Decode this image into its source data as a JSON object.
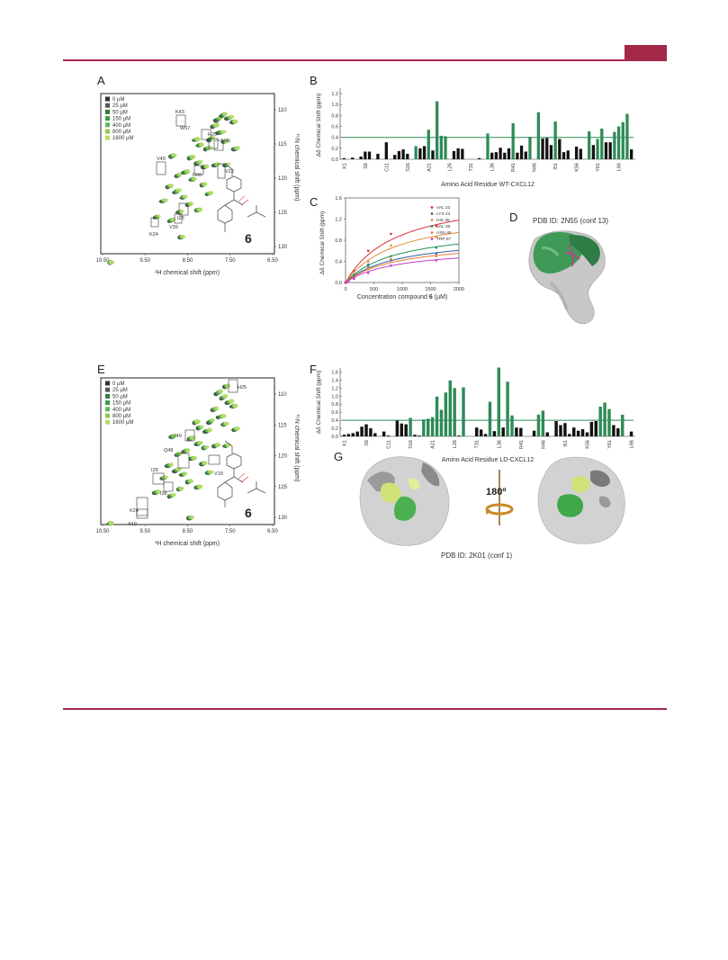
{
  "page": {
    "corner_tab_color": "#a3284a",
    "rule_color": "#a3284a"
  },
  "colors": {
    "green_dark": "#2e8b57",
    "bar_green": "#2e8b57",
    "bar_black": "#111111",
    "threshold": "#2e8b57",
    "peak_black": "#333333",
    "conc": [
      "#333333",
      "#555555",
      "#2e7d3e",
      "#3a9a48",
      "#5cb85c",
      "#8fcc52",
      "#b8dc6a"
    ]
  },
  "panels": {
    "A": {
      "letter": "A",
      "legend": [
        "0 µM",
        "25 µM",
        "50 µM",
        "150 µM",
        "400 µM",
        "800 µM",
        "1600 µM"
      ],
      "xlabel": "¹H chemical shift (ppm)",
      "ylabel": "¹⁵N chemical shift (ppm)",
      "xticks": [
        "10.50",
        "9.50",
        "8.50",
        "7.50",
        "6.50"
      ],
      "yticks": [
        "110",
        "115",
        "120",
        "125",
        "130"
      ],
      "labels": [
        "K43",
        "W57",
        "H25",
        "N45",
        "V49",
        "D60",
        "V23",
        "I28",
        "V39",
        "K24"
      ],
      "compound_label": "6"
    },
    "B": {
      "letter": "B",
      "ylabel": "Δδ Chemical Shift (ppm)",
      "xlabel": "Amino Acid Residue WT-CXCL12",
      "yticks": [
        "0.0",
        "0.2",
        "0.4",
        "0.6",
        "0.8",
        "1.0",
        "1.2"
      ],
      "xticks": [
        "K1",
        "S6",
        "C11",
        "S16",
        "A21",
        "L26",
        "T31",
        "L36",
        "R41",
        "N46",
        "I51",
        "K56",
        "Y61",
        "L66"
      ]
    },
    "C": {
      "letter": "C",
      "ylabel": "Δδ Chemical Shift (ppm)",
      "xlabel_pre": "Concentration compound ",
      "xlabel_bold": "6",
      "xlabel_post": " (µM)",
      "xticks": [
        "0",
        "500",
        "1000",
        "1500",
        "2000"
      ],
      "yticks": [
        "0.0",
        "0.4",
        "0.8",
        "1.2",
        "1.6"
      ],
      "legend": [
        "VAL 23",
        "LYS 24",
        "HIS 25",
        "VAL 39",
        "ASN 45",
        "TRP 57"
      ]
    },
    "D": {
      "letter": "D",
      "title": "PDB ID: 2N55 (conf 13)"
    },
    "E": {
      "letter": "E",
      "legend": [
        "0 µM",
        "25 µM",
        "50 µM",
        "150 µM",
        "400 µM",
        "800 µM",
        "1600 µM"
      ],
      "xlabel": "¹H chemical shift (ppm)",
      "ylabel": "¹⁵N chemical shift (ppm)",
      "xticks": [
        "10.50",
        "9.50",
        "8.50",
        "7.50",
        "6.50"
      ],
      "yticks": [
        "110",
        "115",
        "120",
        "125",
        "130"
      ],
      "labels": [
        "H25",
        "V49",
        "Q48",
        "V18",
        "I28",
        "I38",
        "K24",
        "A40"
      ],
      "compound_label": "6"
    },
    "F": {
      "letter": "F",
      "ylabel": "Δδ Chemical Shift (ppm)",
      "xlabel": "Amino Acid Residue LD-CXCL12",
      "yticks": [
        "0.0",
        "0.2",
        "0.4",
        "0.6",
        "0.8",
        "1.0",
        "1.2",
        "1.4",
        "1.6"
      ],
      "xticks": [
        "K1",
        "S6",
        "C11",
        "S16",
        "A21",
        "L26",
        "T31",
        "L36",
        "R41",
        "N46",
        "I51",
        "K56",
        "Y61",
        "L66"
      ]
    },
    "G": {
      "letter": "G",
      "rotation": "180º",
      "title": "PDB ID: 2K01 (conf 1)"
    }
  },
  "chart_data": [
    {
      "panel": "B",
      "type": "bar",
      "xlabel": "Amino Acid Residue WT-CXCL12",
      "ylabel": "Δδ Chemical Shift (ppm)",
      "ylim": [
        0,
        1.3
      ],
      "threshold": 0.4,
      "values": [
        0.02,
        0,
        0.03,
        0,
        0.05,
        0.14,
        0.14,
        0,
        0.1,
        0,
        0.31,
        0,
        0.08,
        0.15,
        0.18,
        0.1,
        0,
        0.24,
        0.2,
        0.24,
        0.54,
        0.16,
        1.06,
        0.43,
        0.42,
        0,
        0.15,
        0.2,
        0.19,
        0,
        0,
        0,
        0.02,
        0,
        0.47,
        0.12,
        0.13,
        0.21,
        0.12,
        0.2,
        0.66,
        0.12,
        0.25,
        0.14,
        0.41,
        0,
        0.86,
        0.38,
        0.39,
        0.26,
        0.69,
        0.37,
        0.13,
        0.16,
        0,
        0.23,
        0.19,
        0,
        0.51,
        0.26,
        0.37,
        0.56,
        0.31,
        0.31,
        0.5,
        0.6,
        0.68,
        0.83,
        0.18
      ],
      "green": [
        0,
        0,
        0,
        0,
        0,
        0,
        0,
        0,
        0,
        0,
        0,
        0,
        0,
        0,
        0,
        0,
        0,
        1,
        0,
        0,
        1,
        0,
        1,
        1,
        1,
        0,
        0,
        0,
        0,
        0,
        0,
        0,
        0,
        0,
        1,
        0,
        0,
        0,
        0,
        0,
        1,
        0,
        0,
        0,
        1,
        0,
        1,
        0,
        0,
        0,
        1,
        0,
        0,
        0,
        0,
        0,
        0,
        0,
        1,
        0,
        1,
        1,
        0,
        0,
        1,
        1,
        1,
        1,
        0
      ]
    },
    {
      "panel": "F",
      "type": "bar",
      "xlabel": "Amino Acid Residue LD-CXCL12",
      "ylabel": "Δδ Chemical Shift (ppm)",
      "ylim": [
        0,
        1.7
      ],
      "threshold": 0.4,
      "values": [
        0.04,
        0.06,
        0.08,
        0.12,
        0.24,
        0.3,
        0.2,
        0.08,
        0,
        0.12,
        0.02,
        0,
        0.4,
        0.32,
        0.3,
        0.46,
        0.04,
        0.02,
        0.42,
        0.44,
        0.48,
        0.99,
        0.66,
        1.09,
        1.39,
        1.2,
        0.02,
        1.22,
        0,
        0,
        0.22,
        0.17,
        0.06,
        0.86,
        0.13,
        1.71,
        0.22,
        1.36,
        0.52,
        0.22,
        0.21,
        0,
        0,
        0.14,
        0.54,
        0.64,
        0.1,
        0,
        0.38,
        0.28,
        0.33,
        0.06,
        0.22,
        0.14,
        0.18,
        0.1,
        0.36,
        0.38,
        0.74,
        0.84,
        0.68,
        0.28,
        0.2,
        0.54,
        0,
        0.12
      ],
      "green": [
        0,
        0,
        0,
        0,
        0,
        0,
        0,
        0,
        0,
        0,
        0,
        0,
        0,
        0,
        0,
        1,
        0,
        0,
        1,
        1,
        1,
        1,
        1,
        1,
        1,
        1,
        0,
        1,
        0,
        0,
        0,
        0,
        0,
        1,
        0,
        1,
        0,
        1,
        1,
        0,
        0,
        0,
        0,
        0,
        1,
        1,
        0,
        0,
        0,
        0,
        0,
        0,
        0,
        0,
        0,
        0,
        0,
        0,
        1,
        1,
        1,
        0,
        0,
        1,
        0,
        0
      ]
    },
    {
      "panel": "C",
      "type": "scatter",
      "xlabel": "Concentration compound 6 (µM)",
      "ylabel": "Δδ Chemical Shift (ppm)",
      "xlim": [
        0,
        2000
      ],
      "ylim": [
        0,
        1.6
      ],
      "x": [
        0,
        25,
        50,
        150,
        400,
        800,
        1600
      ],
      "series": [
        {
          "name": "VAL 23",
          "color": "#d8343c",
          "values": [
            0,
            0.03,
            0.06,
            0.22,
            0.6,
            0.92,
            1.07
          ]
        },
        {
          "name": "LYS 24",
          "color": "#2f5fa8",
          "values": [
            0,
            0.02,
            0.04,
            0.12,
            0.34,
            0.42,
            0.55
          ]
        },
        {
          "name": "HIS 25",
          "color": "#e58c3a",
          "values": [
            0,
            0.03,
            0.05,
            0.16,
            0.4,
            0.7,
            0.86
          ]
        },
        {
          "name": "VAL 39",
          "color": "#21925a",
          "values": [
            0,
            0.02,
            0.04,
            0.13,
            0.3,
            0.5,
            0.66
          ]
        },
        {
          "name": "ASN 45",
          "color": "#e57b2c",
          "values": [
            0,
            0.02,
            0.04,
            0.1,
            0.28,
            0.44,
            0.5
          ]
        },
        {
          "name": "TRP 57",
          "color": "#c43ec9",
          "values": [
            0,
            0.01,
            0.02,
            0.07,
            0.18,
            0.32,
            0.42
          ]
        }
      ]
    }
  ]
}
